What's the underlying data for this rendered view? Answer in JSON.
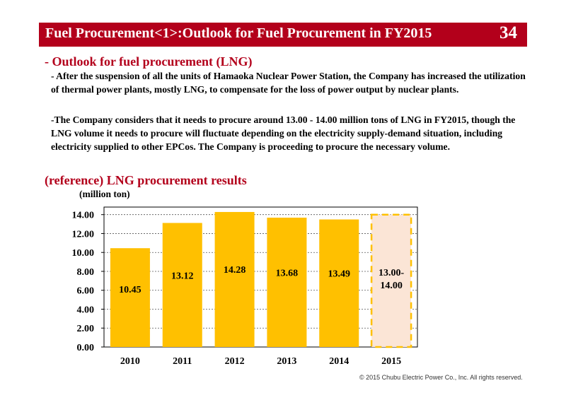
{
  "header": {
    "title": "Fuel Procurement<1>:Outlook for Fuel Procurement in FY2015",
    "page_number": "34"
  },
  "section": {
    "heading": "- Outlook for fuel procurement (LNG)",
    "paragraphs": [
      "- After the suspension of all the units of  Hamaoka Nuclear Power Station, the Company has increased the utilization of thermal power plants, mostly LNG, to compensate for the loss of power output by nuclear plants.",
      "-The Company considers that it needs to procure around 13.00 - 14.00 million tons of LNG in FY2015, though the LNG volume it needs to procure will fluctuate depending on the electricity supply-demand situation, including electricity supplied to other EPCos. The Company is proceeding to procure the necessary volume."
    ]
  },
  "chart_data": {
    "type": "bar",
    "title": "(reference) LNG procurement results",
    "ylabel": "(million ton)",
    "categories": [
      "2010",
      "2011",
      "2012",
      "2013",
      "2014",
      "2015"
    ],
    "values": [
      10.45,
      13.12,
      14.28,
      13.68,
      13.49,
      14.0
    ],
    "data_labels": [
      "10.45",
      "13.12",
      "14.28",
      "13.68",
      "13.49",
      "13.00-\n14.00"
    ],
    "forecast_range": {
      "category": "2015",
      "low": 13.0,
      "high": 14.0
    },
    "ylim": [
      0,
      14.0
    ],
    "yticks": [
      "0.00",
      "2.00",
      "4.00",
      "6.00",
      "8.00",
      "10.00",
      "12.00",
      "14.00"
    ],
    "grid": "horizontal dotted",
    "colors": {
      "bar": "#ffc000",
      "forecast_fill": "#fbe5d6",
      "forecast_border": "#ffc000"
    }
  },
  "footer": {
    "copyright": "© 2015 Chubu Electric Power Co., Inc. All rights reserved."
  }
}
